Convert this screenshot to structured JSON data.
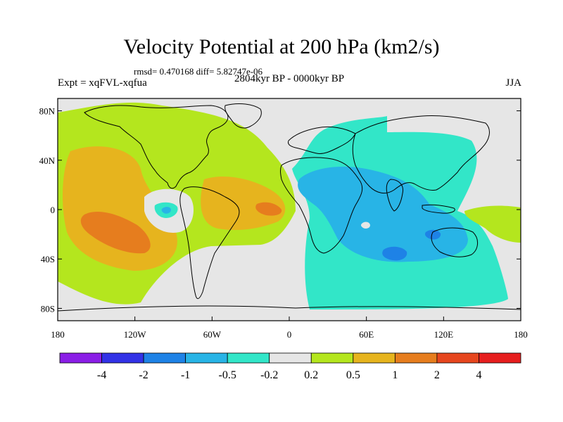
{
  "title": "Velocity Potential at 200 hPa (km2/s)",
  "stats": "rmsd= 0.470168 diff= 5.82747e-06",
  "subtitle": "2804kyr BP - 0000kyr BP",
  "experiment": "Expt = xqFVL-xqfua",
  "season": "JJA",
  "colors": {
    "land_outline": "#000000",
    "ocean_neutral": "#e6e6e6",
    "palette": [
      "#8a1ee6",
      "#3232e6",
      "#1e82e6",
      "#28b4e6",
      "#32e6c8",
      "#e6e6e6",
      "#b4e61e",
      "#e6b41e",
      "#e67d1e",
      "#e6461e",
      "#e61e1e"
    ]
  },
  "map": {
    "projection": "cylindrical-equidistant",
    "x_ticks": [
      "180",
      "120W",
      "60W",
      "0",
      "60E",
      "120E",
      "180"
    ],
    "y_ticks": [
      "80N",
      "40N",
      "0",
      "40S",
      "80S"
    ]
  },
  "colorbar": {
    "labels": [
      "-4",
      "-2",
      "-1",
      "-0.5",
      "-0.2",
      "0.2",
      "0.5",
      "1",
      "2",
      "4"
    ]
  },
  "chart_data": {
    "type": "heatmap",
    "title": "Velocity Potential at 200 hPa (km2/s)",
    "subtitle": "2804kyr BP - 0000kyr BP",
    "x_range_deg": [
      -180,
      180
    ],
    "y_range_deg": [
      -90,
      90
    ],
    "levels": [
      -4,
      -2,
      -1,
      -0.5,
      -0.2,
      0.2,
      0.5,
      1,
      2,
      4
    ],
    "features": [
      {
        "region": "Western Hemisphere Pacific/Americas/Atlantic",
        "sign": "positive",
        "value_range": [
          0.2,
          0.5
        ]
      },
      {
        "region": "Eastern Pacific (~20S, 140W)",
        "sign": "positive",
        "value_range": [
          1,
          2
        ]
      },
      {
        "region": "Eastern Atlantic (~0, 20W)",
        "sign": "positive",
        "value_range": [
          1,
          2
        ]
      },
      {
        "region": "Africa / Indian Ocean / Asia",
        "sign": "negative",
        "value_range": [
          -0.5,
          -0.2
        ]
      },
      {
        "region": "Central Indian Ocean (~30S, 80E)",
        "sign": "negative",
        "value_range": [
          -1,
          -0.5
        ]
      },
      {
        "region": "Eastern Pacific near Peru (~0, 95W)",
        "sign": "negative",
        "value_range": [
          -0.5,
          -0.2
        ]
      },
      {
        "region": "Western Pacific (~0, 160E)",
        "sign": "positive",
        "value_range": [
          0.2,
          0.5
        ]
      }
    ]
  }
}
